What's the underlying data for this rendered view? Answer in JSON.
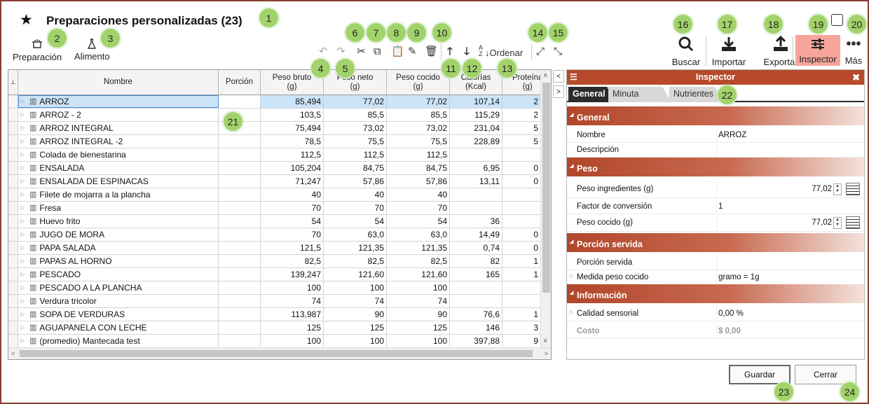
{
  "header": {
    "title": "Preparaciones personalizadas (23)",
    "star_icon": "star-icon"
  },
  "toolbar_left": {
    "preparacion": "Preparación",
    "alimento": "Alimento"
  },
  "toolbar_mid": {
    "ordenar": "Ordenar"
  },
  "toolbar_right": {
    "buscar": "Buscar",
    "importar": "Importar",
    "exportar": "Exportar",
    "inspector": "Inspector",
    "mas": "Más"
  },
  "colors": {
    "accent": "#b64a2a",
    "active_button": "#f7a59c",
    "selected_row": "#cbe4f8",
    "badge": "#a2d36b"
  },
  "grid": {
    "columns": [
      "Nombre",
      "Porción",
      "Peso bruto\n(g)",
      "Peso neto\n(g)",
      "Peso cocido\n(g)",
      "Calorías\n(Kcal)",
      "Proteína\n(g)"
    ],
    "rows": [
      {
        "name": "ARROZ",
        "porcion": "",
        "bruto": "85,494",
        "neto": "77,02",
        "cocido": "77,02",
        "kcal": "107,14",
        "prot": "2",
        "selected": true
      },
      {
        "name": "ARROZ - 2",
        "porcion": "",
        "bruto": "103,5",
        "neto": "85,5",
        "cocido": "85,5",
        "kcal": "115,29",
        "prot": "2"
      },
      {
        "name": "ARROZ INTEGRAL",
        "porcion": "",
        "bruto": "75,494",
        "neto": "73,02",
        "cocido": "73,02",
        "kcal": "231,04",
        "prot": "5"
      },
      {
        "name": "ARROZ INTEGRAL -2",
        "porcion": "",
        "bruto": "78,5",
        "neto": "75,5",
        "cocido": "75,5",
        "kcal": "228,89",
        "prot": "5"
      },
      {
        "name": "Colada de bienestarina",
        "porcion": "",
        "bruto": "112,5",
        "neto": "112,5",
        "cocido": "112,5",
        "kcal": "",
        "prot": ""
      },
      {
        "name": "ENSALADA",
        "porcion": "",
        "bruto": "105,204",
        "neto": "84,75",
        "cocido": "84,75",
        "kcal": "6,95",
        "prot": "0"
      },
      {
        "name": "ENSALADA DE ESPINACAS",
        "porcion": "",
        "bruto": "71,247",
        "neto": "57,86",
        "cocido": "57,86",
        "kcal": "13,11",
        "prot": "0"
      },
      {
        "name": "Filete de mojarra a la plancha",
        "porcion": "",
        "bruto": "40",
        "neto": "40",
        "cocido": "40",
        "kcal": "",
        "prot": ""
      },
      {
        "name": "Fresa",
        "porcion": "",
        "bruto": "70",
        "neto": "70",
        "cocido": "70",
        "kcal": "",
        "prot": ""
      },
      {
        "name": "Huevo frito",
        "porcion": "",
        "bruto": "54",
        "neto": "54",
        "cocido": "54",
        "kcal": "36",
        "prot": ""
      },
      {
        "name": "JUGO DE MORA",
        "porcion": "",
        "bruto": "70",
        "neto": "63,0",
        "cocido": "63,0",
        "kcal": "14,49",
        "prot": "0"
      },
      {
        "name": "PAPA SALADA",
        "porcion": "",
        "bruto": "121,5",
        "neto": "121,35",
        "cocido": "121,35",
        "kcal": "0,74",
        "prot": "0"
      },
      {
        "name": "PAPAS AL HORNO",
        "porcion": "",
        "bruto": "82,5",
        "neto": "82,5",
        "cocido": "82,5",
        "kcal": "82",
        "prot": "1"
      },
      {
        "name": "PESCADO",
        "porcion": "",
        "bruto": "139,247",
        "neto": "121,60",
        "cocido": "121,60",
        "kcal": "165",
        "prot": "1"
      },
      {
        "name": "PESCADO A LA PLANCHA",
        "porcion": "",
        "bruto": "100",
        "neto": "100",
        "cocido": "100",
        "kcal": "",
        "prot": ""
      },
      {
        "name": "Verdura tricolor",
        "porcion": "",
        "bruto": "74",
        "neto": "74",
        "cocido": "74",
        "kcal": "",
        "prot": ""
      },
      {
        "name": "SOPA DE VERDURAS",
        "porcion": "",
        "bruto": "113,987",
        "neto": "90",
        "cocido": "90",
        "kcal": "76,6",
        "prot": "1"
      },
      {
        "name": "AGUAPANELA CON LECHE",
        "porcion": "",
        "bruto": "125",
        "neto": "125",
        "cocido": "125",
        "kcal": "146",
        "prot": "3"
      },
      {
        "name": "(promedio) Mantecada test",
        "porcion": "",
        "bruto": "100",
        "neto": "100",
        "cocido": "100",
        "kcal": "397,88",
        "prot": "9"
      }
    ]
  },
  "inspector": {
    "title": "Inspector",
    "tabs": [
      "General",
      "Minuta patrón",
      "Nutrientes"
    ],
    "sections": {
      "general": "General",
      "peso": "Peso",
      "porcion": "Porción servida",
      "info": "Información"
    },
    "props": {
      "nombre_l": "Nombre",
      "nombre_v": "ARROZ",
      "desc_l": "Descripción",
      "ping_l": "Peso ingredientes (g)",
      "ping_v": "77,02",
      "fconv_l": "Factor de conversión",
      "fconv_v": "1",
      "pcoc_l": "Peso cocido (g)",
      "pcoc_v": "77,02",
      "pserv_l": "Porción servida",
      "medida_l": "Medida peso cocido",
      "medida_v": "gramo = 1g",
      "calidad_l": "Calidad sensorial",
      "calidad_v": "0,00 %",
      "costo_l": "Costo",
      "costo_v": "$ 0,00"
    }
  },
  "buttons": {
    "guardar": "Guardar",
    "cerrar": "Cerrar"
  },
  "badges": [
    "1",
    "2",
    "3",
    "4",
    "5",
    "6",
    "7",
    "8",
    "9",
    "10",
    "11",
    "12",
    "13",
    "14",
    "15",
    "16",
    "17",
    "18",
    "19",
    "20",
    "21",
    "22",
    "23",
    "24"
  ]
}
